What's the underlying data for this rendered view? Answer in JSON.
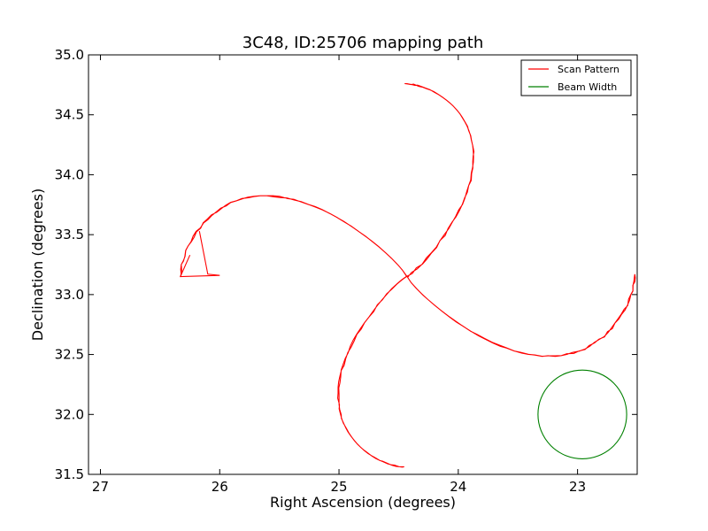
{
  "chart_data": {
    "type": "line",
    "title": "3C48, ID:25706 mapping path",
    "xlabel": "Right Ascension (degrees)",
    "ylabel": "Declination (degrees)",
    "xlim": [
      27.1,
      22.5
    ],
    "ylim": [
      31.5,
      35.0
    ],
    "x_ticks": [
      27,
      26,
      25,
      24,
      23
    ],
    "x_tick_labels": [
      "27",
      "26",
      "25",
      "24",
      "23"
    ],
    "y_ticks": [
      31.5,
      32.0,
      32.5,
      33.0,
      33.5,
      34.0,
      34.5,
      35.0
    ],
    "y_tick_labels": [
      "31.5",
      "32.0",
      "32.5",
      "33.0",
      "33.5",
      "34.0",
      "34.5",
      "35.0"
    ],
    "grid": false,
    "legend_position": "top-right",
    "series": [
      {
        "name": "Scan Pattern",
        "color": "#ff0000",
        "shape": "four-lobe rosette scan",
        "center": [
          24.43,
          33.15
        ],
        "lobe_tips": {
          "north": [
            24.45,
            34.76
          ],
          "south": [
            24.45,
            31.56
          ],
          "east": [
            22.52,
            33.17
          ],
          "west": [
            26.33,
            33.15
          ]
        },
        "start_segment": {
          "x": [
            26.25,
            26.33,
            26.0,
            26.1,
            26.17
          ],
          "y": [
            33.33,
            33.15,
            33.16,
            33.17,
            33.53
          ]
        }
      },
      {
        "name": "Beam Width",
        "color": "#008000",
        "shape": "circle",
        "center": [
          22.96,
          32.0
        ],
        "radius_deg": 0.37
      }
    ]
  }
}
